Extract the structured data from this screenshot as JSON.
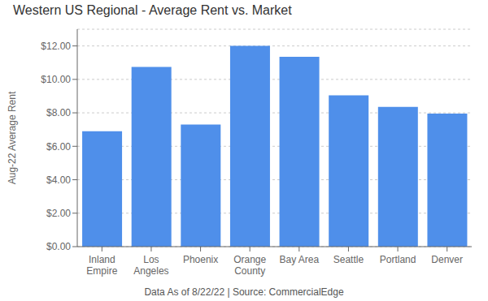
{
  "chart_data": {
    "type": "bar",
    "title": "Western US Regional - Average Rent vs. Market",
    "categories": [
      "Inland\nEmpire",
      "Los\nAngeles",
      "Phoenix",
      "Orange\nCounty",
      "Bay Area",
      "Seattle",
      "Portland",
      "Denver"
    ],
    "values": [
      6.9,
      10.75,
      7.3,
      12.0,
      11.35,
      9.05,
      8.35,
      7.95
    ],
    "color": "#4f8fea",
    "ylabel": "Aug-22 Average Rent",
    "caption": "Data As of 8/22/22 | Source: CommercialEdge",
    "ylim": [
      0,
      13.0
    ],
    "yticks": [
      {
        "value": 0,
        "label": "$0.00"
      },
      {
        "value": 2,
        "label": "$2.00"
      },
      {
        "value": 4,
        "label": "$4.00"
      },
      {
        "value": 6,
        "label": "$6.00"
      },
      {
        "value": 8,
        "label": "$8.00"
      },
      {
        "value": 10,
        "label": "$10.00"
      },
      {
        "value": 12,
        "label": "$12.00"
      }
    ],
    "grid": true
  }
}
